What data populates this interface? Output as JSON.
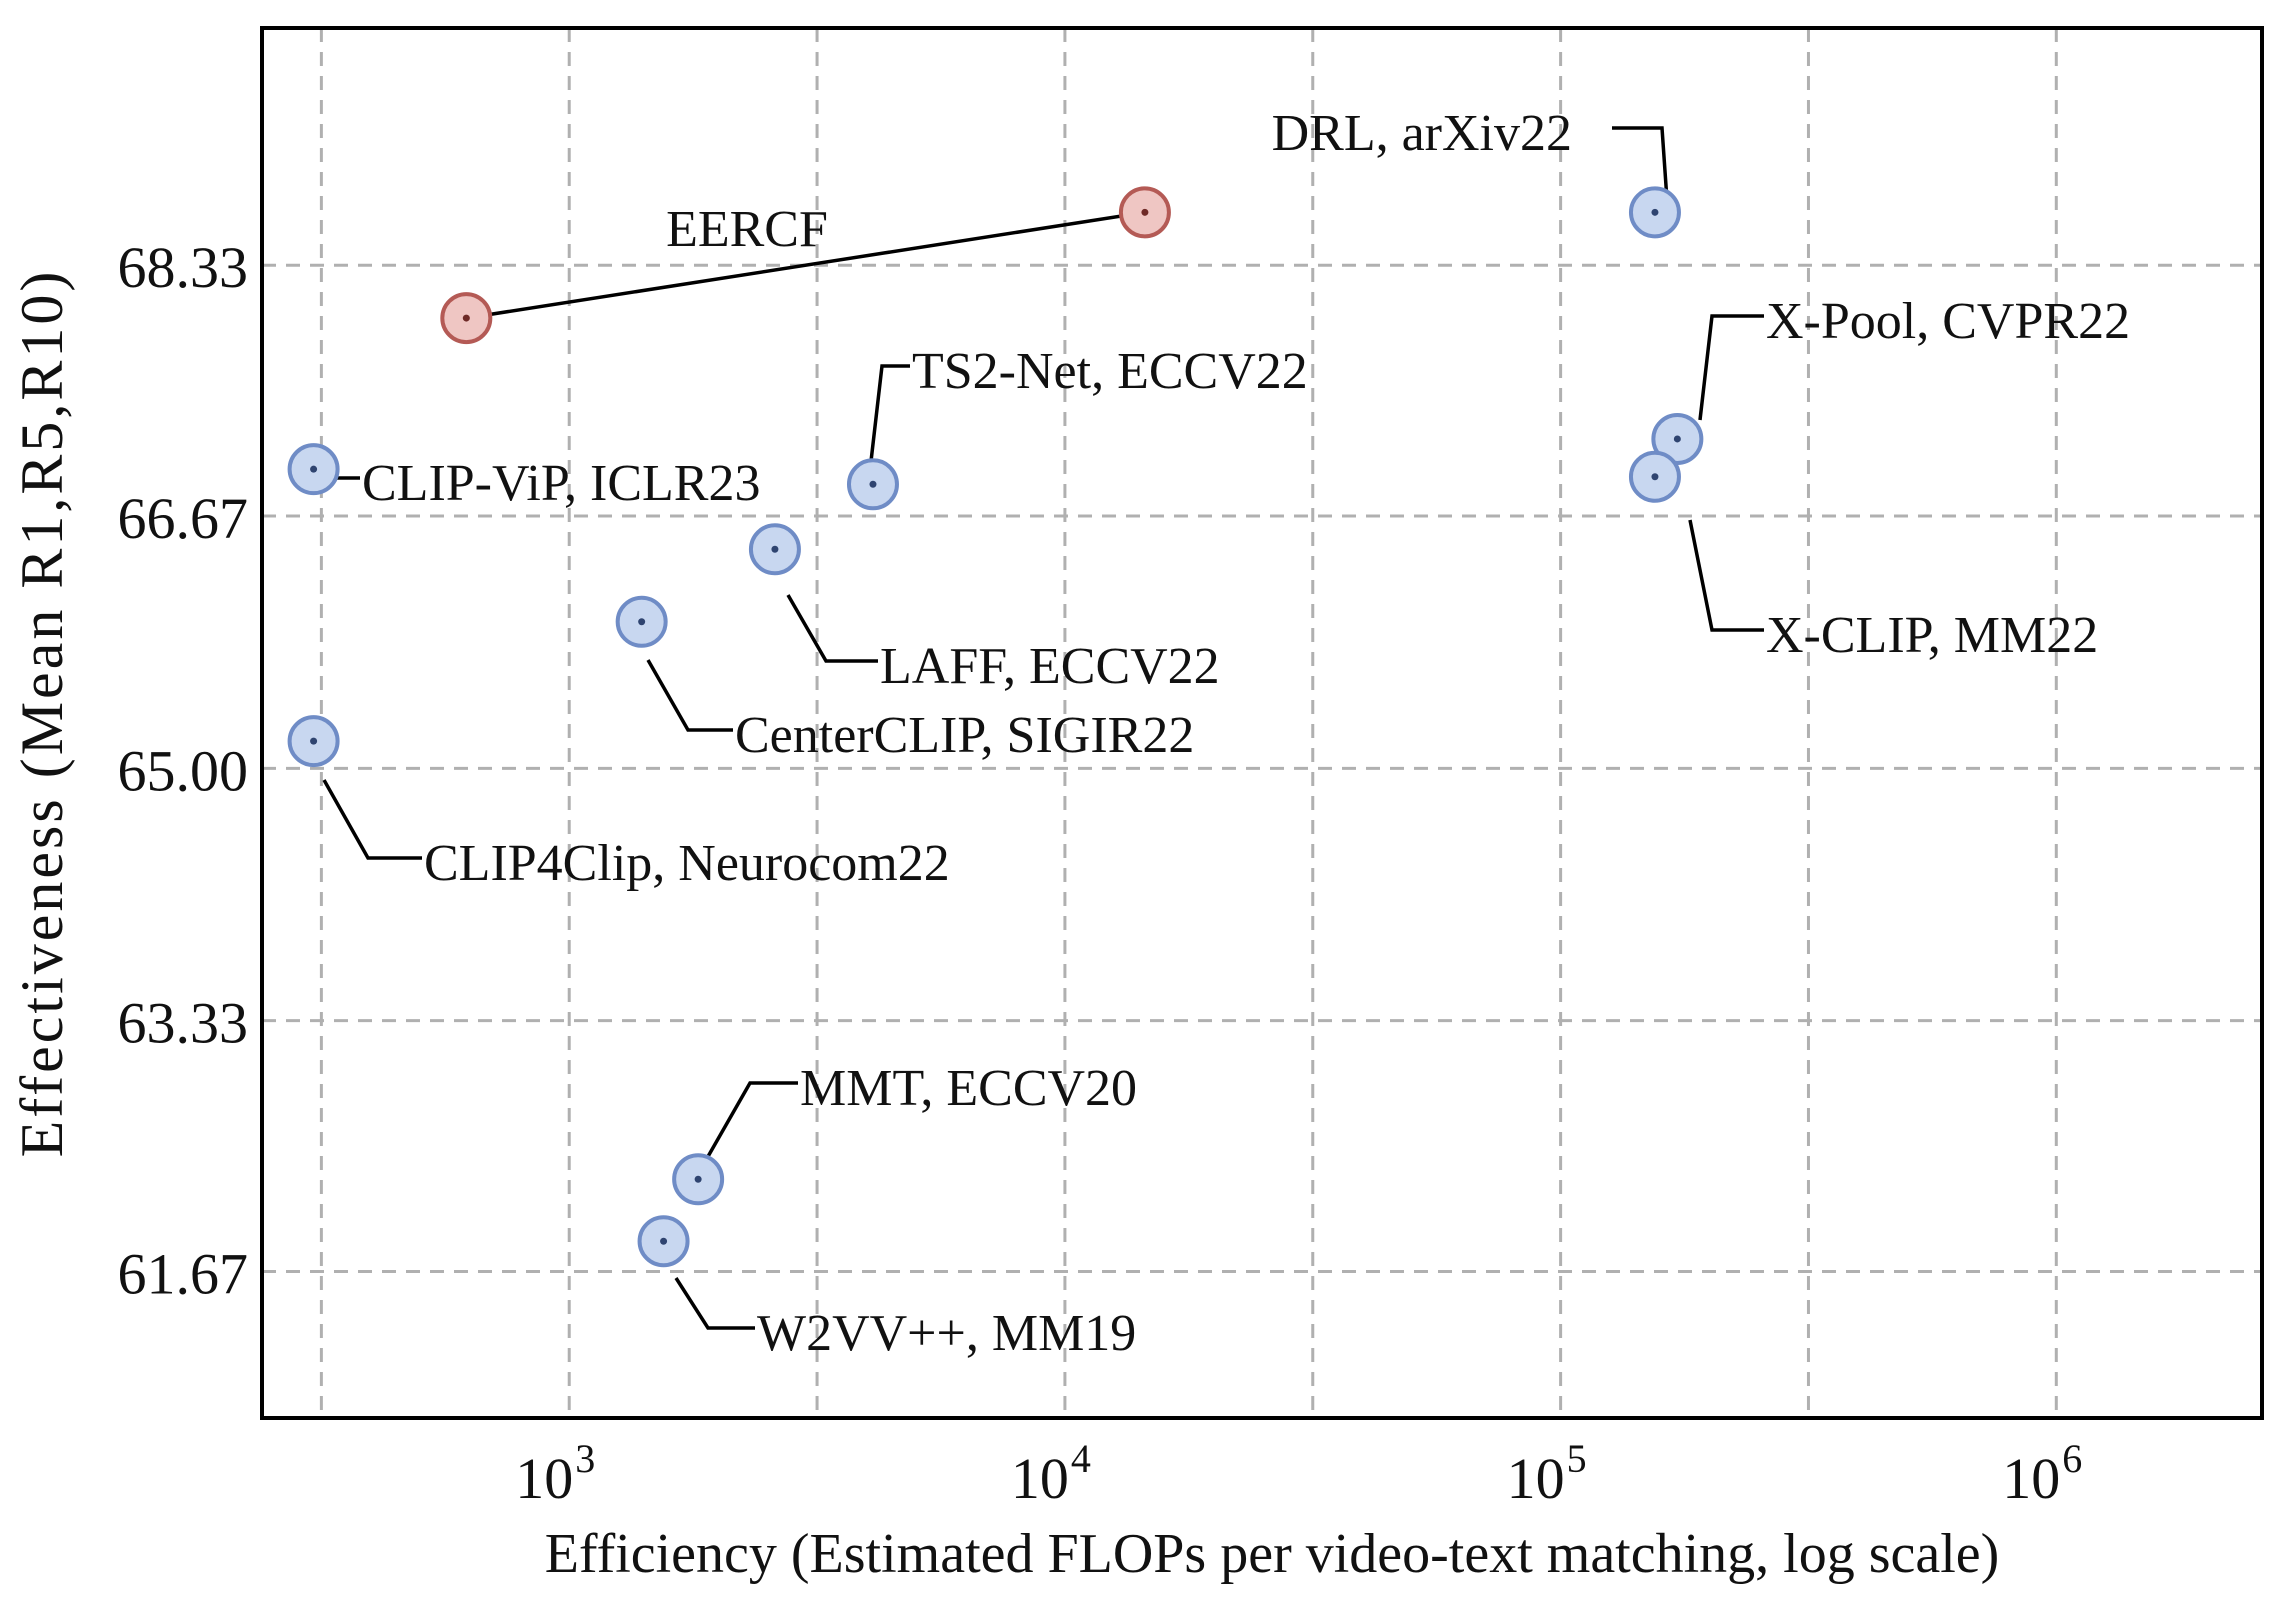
{
  "chart_data": {
    "type": "scatter",
    "xlabel": "Efficiency (Estimated FLOPs per video-text matching, log scale)",
    "ylabel": "Effectiveness (Mean R1,R5,R10)",
    "x_scale": "log",
    "xlim": [
      240,
      2600000
    ],
    "ylim": [
      60.7,
      69.9
    ],
    "grid": true,
    "x_ticks": [
      {
        "value": 1000,
        "label": "10",
        "exp": "3"
      },
      {
        "value": 10000,
        "label": "10",
        "exp": "4"
      },
      {
        "value": 100000,
        "label": "10",
        "exp": "5"
      },
      {
        "value": 1000000,
        "label": "10",
        "exp": "6"
      }
    ],
    "y_ticks": [
      {
        "value": 61.67,
        "label": "61.67"
      },
      {
        "value": 63.33,
        "label": "63.33"
      },
      {
        "value": 65.0,
        "label": "65.00"
      },
      {
        "value": 66.67,
        "label": "66.67"
      },
      {
        "value": 68.33,
        "label": "68.33"
      }
    ],
    "points": [
      {
        "label": "DRL, arXiv22",
        "x": 155000,
        "y": 68.68,
        "color": "blue"
      },
      {
        "label": "X-Pool, CVPR22",
        "x": 172000,
        "y": 67.18,
        "color": "blue"
      },
      {
        "label": "X-CLIP, MM22",
        "x": 155000,
        "y": 66.93,
        "color": "blue"
      },
      {
        "label": "TS2-Net, ECCV22",
        "x": 4100,
        "y": 66.88,
        "color": "blue"
      },
      {
        "label": "CLIP-ViP, ICLR23",
        "x": 305,
        "y": 66.98,
        "color": "blue"
      },
      {
        "label": "LAFF, ECCV22",
        "x": 2600,
        "y": 66.45,
        "color": "blue"
      },
      {
        "label": "CenterCLIP, SIGIR22",
        "x": 1400,
        "y": 65.97,
        "color": "blue"
      },
      {
        "label": "CLIP4Clip, Neurocom22",
        "x": 305,
        "y": 65.18,
        "color": "blue"
      },
      {
        "label": "MMT, ECCV20",
        "x": 1820,
        "y": 62.28,
        "color": "blue"
      },
      {
        "label": "W2VV++, MM19",
        "x": 1550,
        "y": 61.87,
        "color": "blue"
      },
      {
        "label": "",
        "x": 620,
        "y": 67.98,
        "color": "red"
      },
      {
        "label": "",
        "x": 14500,
        "y": 68.68,
        "color": "red"
      }
    ],
    "connections": [
      {
        "label": "EERCF",
        "from": 10,
        "to": 11
      }
    ],
    "colors": {
      "blue_fill": "#c8d7f0",
      "blue_edge": "#6f8cc6",
      "red_fill": "#efc6c3",
      "red_edge": "#b45a55"
    }
  }
}
